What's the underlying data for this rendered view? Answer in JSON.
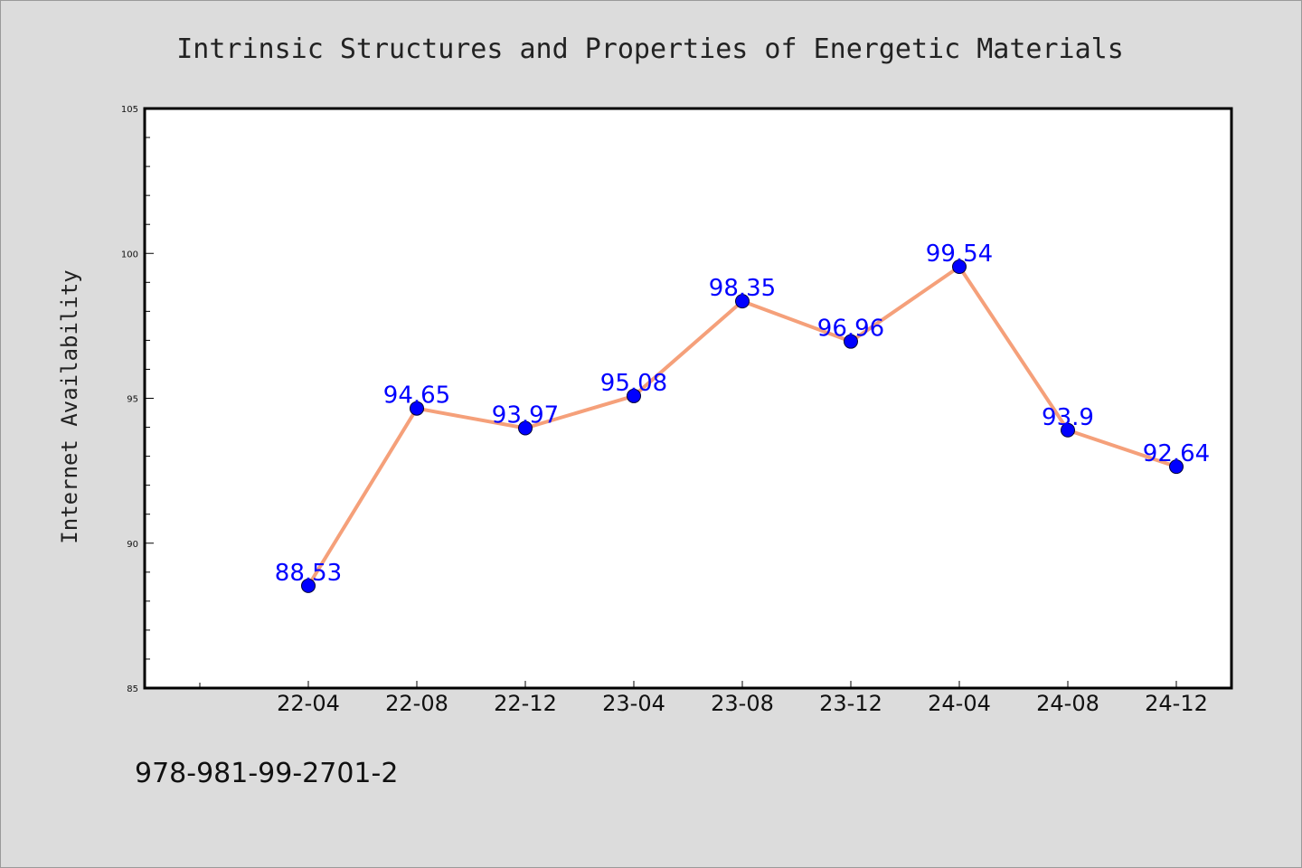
{
  "chart_data": {
    "type": "line",
    "title": "Intrinsic Structures and Properties of Energetic Materials",
    "xlabel": "",
    "ylabel": "Internet Availability",
    "categories": [
      "22-04",
      "22-08",
      "22-12",
      "23-04",
      "23-08",
      "23-12",
      "24-04",
      "24-08",
      "24-12"
    ],
    "series": [
      {
        "values": [
          88.53,
          94.65,
          93.97,
          95.08,
          98.35,
          96.96,
          99.54,
          93.9,
          92.64
        ],
        "value_labels": [
          "88.53",
          "94.65",
          "93.97",
          "95.08",
          "98.35",
          "96.96",
          "99.54",
          "93.9",
          "92.64"
        ],
        "line_color": "#f5a07a",
        "marker_color": "#0000ff"
      }
    ],
    "ylim": [
      85,
      105
    ],
    "yticks": [
      85,
      90,
      95,
      100,
      105
    ],
    "ytick_labels": [
      "85",
      "90",
      "95",
      "100",
      "105"
    ],
    "grid": false,
    "legend": "none"
  },
  "footnote": "978-981-99-2701-2",
  "colors": {
    "background": "#dcdcdc",
    "plot_background": "#ffffff",
    "axis": "#000000",
    "label_color": "#0000ff"
  }
}
